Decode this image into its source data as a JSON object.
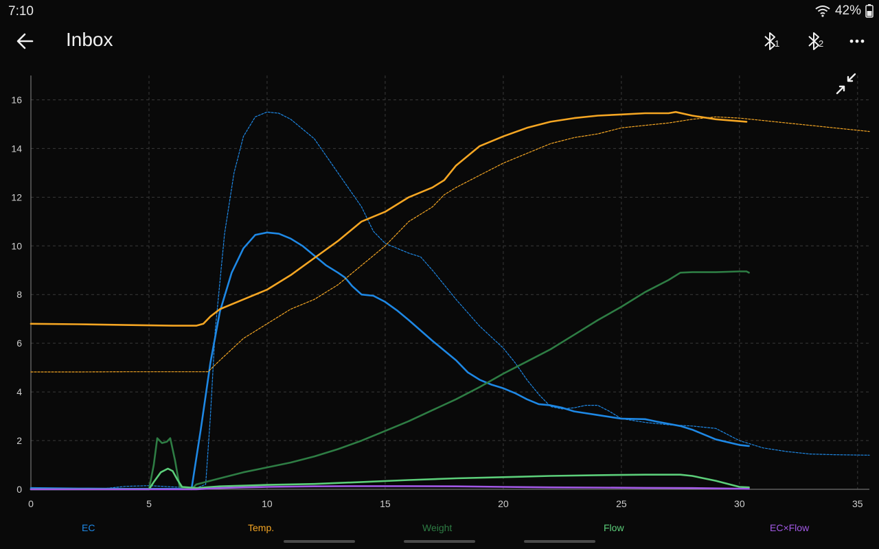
{
  "status": {
    "time": "7:10",
    "battery": "42%",
    "icons": [
      "wifi-icon",
      "battery-icon"
    ]
  },
  "app_bar": {
    "title": "Inbox",
    "back_icon": "arrow-left-icon",
    "bt1_label": "1",
    "bt2_label": "2",
    "more_icon": "more-horizontal-icon",
    "collapse_icon": "collapse-arrows-icon"
  },
  "colors": {
    "ec": "#1e88e5",
    "temp": "#f5a623",
    "weight": "#2e7d44",
    "flow": "#5ccf7a",
    "ecflow": "#a259e6"
  },
  "chart_data": {
    "type": "line",
    "xlim": [
      0,
      35.5
    ],
    "ylim": [
      0,
      17
    ],
    "x_ticks": [
      "0",
      "5",
      "10",
      "15",
      "20",
      "25",
      "30",
      "35"
    ],
    "y_ticks": [
      "0",
      "2",
      "4",
      "6",
      "8",
      "10",
      "12",
      "14",
      "16"
    ],
    "grid": true,
    "legend_position": "bottom",
    "series": [
      {
        "name": "EC",
        "style": "solid",
        "color": "#1e88e5",
        "points": [
          [
            0,
            0.05
          ],
          [
            2,
            0.03
          ],
          [
            4,
            0.02
          ],
          [
            6,
            0.02
          ],
          [
            6.8,
            0.01
          ],
          [
            7.2,
            2.5
          ],
          [
            7.6,
            5.2
          ],
          [
            8.0,
            7.3
          ],
          [
            8.5,
            8.9
          ],
          [
            9.0,
            9.9
          ],
          [
            9.5,
            10.45
          ],
          [
            10.0,
            10.55
          ],
          [
            10.5,
            10.5
          ],
          [
            11,
            10.3
          ],
          [
            11.5,
            10.0
          ],
          [
            12,
            9.6
          ],
          [
            12.5,
            9.2
          ],
          [
            13,
            8.9
          ],
          [
            13.3,
            8.7
          ],
          [
            13.6,
            8.35
          ],
          [
            14,
            8.0
          ],
          [
            14.5,
            7.95
          ],
          [
            15,
            7.7
          ],
          [
            15.5,
            7.35
          ],
          [
            16,
            6.95
          ],
          [
            17,
            6.1
          ],
          [
            18,
            5.3
          ],
          [
            18.5,
            4.8
          ],
          [
            19,
            4.5
          ],
          [
            19.5,
            4.3
          ],
          [
            20,
            4.15
          ],
          [
            20.5,
            3.95
          ],
          [
            21,
            3.7
          ],
          [
            21.5,
            3.5
          ],
          [
            22,
            3.45
          ],
          [
            22.5,
            3.35
          ],
          [
            23,
            3.2
          ],
          [
            24,
            3.05
          ],
          [
            25,
            2.9
          ],
          [
            26,
            2.88
          ],
          [
            26.5,
            2.78
          ],
          [
            27.5,
            2.6
          ],
          [
            28,
            2.45
          ],
          [
            29,
            2.05
          ],
          [
            30,
            1.82
          ],
          [
            30.4,
            1.78
          ]
        ]
      },
      {
        "name": "EC",
        "style": "dashed",
        "color": "#1e88e5",
        "points": [
          [
            0,
            0.04
          ],
          [
            3,
            0.02
          ],
          [
            4,
            0.12
          ],
          [
            5,
            0.15
          ],
          [
            6,
            0.1
          ],
          [
            7,
            0.05
          ],
          [
            7.4,
            0.2
          ],
          [
            7.6,
            3.0
          ],
          [
            7.8,
            6.5
          ],
          [
            8.2,
            10.5
          ],
          [
            8.6,
            13.0
          ],
          [
            9.0,
            14.5
          ],
          [
            9.5,
            15.3
          ],
          [
            10.0,
            15.5
          ],
          [
            10.5,
            15.45
          ],
          [
            11,
            15.2
          ],
          [
            12,
            14.4
          ],
          [
            13,
            13.0
          ],
          [
            14,
            11.6
          ],
          [
            14.5,
            10.6
          ],
          [
            15,
            10.1
          ],
          [
            15.5,
            9.9
          ],
          [
            16,
            9.7
          ],
          [
            16.5,
            9.55
          ],
          [
            17,
            9.0
          ],
          [
            18,
            7.8
          ],
          [
            19,
            6.7
          ],
          [
            20,
            5.8
          ],
          [
            20.5,
            5.2
          ],
          [
            21,
            4.5
          ],
          [
            21.5,
            3.9
          ],
          [
            22,
            3.4
          ],
          [
            22.5,
            3.3
          ],
          [
            23,
            3.35
          ],
          [
            23.5,
            3.45
          ],
          [
            24,
            3.45
          ],
          [
            24.5,
            3.2
          ],
          [
            25,
            2.9
          ],
          [
            26,
            2.75
          ],
          [
            27,
            2.65
          ],
          [
            28,
            2.6
          ],
          [
            29,
            2.5
          ],
          [
            30,
            2.0
          ],
          [
            31,
            1.7
          ],
          [
            32,
            1.55
          ],
          [
            33,
            1.45
          ],
          [
            34,
            1.42
          ],
          [
            35.5,
            1.4
          ]
        ]
      },
      {
        "name": "Temp.",
        "style": "solid",
        "color": "#f5a623",
        "points": [
          [
            0,
            6.8
          ],
          [
            2,
            6.78
          ],
          [
            4,
            6.75
          ],
          [
            6,
            6.72
          ],
          [
            7,
            6.72
          ],
          [
            7.3,
            6.8
          ],
          [
            7.6,
            7.1
          ],
          [
            8,
            7.4
          ],
          [
            9,
            7.8
          ],
          [
            10,
            8.2
          ],
          [
            11,
            8.8
          ],
          [
            12,
            9.5
          ],
          [
            13,
            10.2
          ],
          [
            14,
            11.0
          ],
          [
            15,
            11.4
          ],
          [
            16,
            12.0
          ],
          [
            17,
            12.4
          ],
          [
            17.5,
            12.7
          ],
          [
            18,
            13.3
          ],
          [
            19,
            14.1
          ],
          [
            20,
            14.5
          ],
          [
            21,
            14.85
          ],
          [
            22,
            15.1
          ],
          [
            23,
            15.25
          ],
          [
            24,
            15.35
          ],
          [
            25,
            15.4
          ],
          [
            26,
            15.45
          ],
          [
            27,
            15.45
          ],
          [
            27.3,
            15.5
          ],
          [
            28,
            15.35
          ],
          [
            29,
            15.2
          ],
          [
            30.3,
            15.1
          ]
        ]
      },
      {
        "name": "Temp.",
        "style": "dashed",
        "color": "#f5a623",
        "points": [
          [
            0,
            4.82
          ],
          [
            2,
            4.82
          ],
          [
            4,
            4.83
          ],
          [
            6,
            4.83
          ],
          [
            7.5,
            4.83
          ],
          [
            8,
            5.3
          ],
          [
            9,
            6.2
          ],
          [
            10,
            6.8
          ],
          [
            11,
            7.4
          ],
          [
            12,
            7.8
          ],
          [
            13,
            8.4
          ],
          [
            14,
            9.2
          ],
          [
            15,
            10.0
          ],
          [
            16,
            11.0
          ],
          [
            17,
            11.6
          ],
          [
            17.5,
            12.1
          ],
          [
            18,
            12.4
          ],
          [
            19,
            12.9
          ],
          [
            20,
            13.4
          ],
          [
            21,
            13.8
          ],
          [
            22,
            14.2
          ],
          [
            23,
            14.45
          ],
          [
            24,
            14.6
          ],
          [
            25,
            14.85
          ],
          [
            26,
            14.95
          ],
          [
            27,
            15.05
          ],
          [
            28,
            15.2
          ],
          [
            29,
            15.3
          ],
          [
            30,
            15.25
          ],
          [
            31,
            15.15
          ],
          [
            32,
            15.05
          ],
          [
            33,
            14.95
          ],
          [
            34,
            14.85
          ],
          [
            35.5,
            14.7
          ]
        ]
      },
      {
        "name": "Weight",
        "style": "solid",
        "color": "#2e7d44",
        "points": [
          [
            0,
            0.0
          ],
          [
            5,
            0.0
          ],
          [
            5.2,
            1.0
          ],
          [
            5.35,
            2.1
          ],
          [
            5.55,
            1.9
          ],
          [
            5.75,
            1.95
          ],
          [
            5.9,
            2.1
          ],
          [
            6.1,
            1.2
          ],
          [
            6.3,
            0.1
          ],
          [
            6.8,
            0.0
          ],
          [
            7,
            0.2
          ],
          [
            8,
            0.45
          ],
          [
            9,
            0.7
          ],
          [
            10,
            0.9
          ],
          [
            11,
            1.1
          ],
          [
            12,
            1.35
          ],
          [
            13,
            1.65
          ],
          [
            14,
            2.0
          ],
          [
            15,
            2.4
          ],
          [
            16,
            2.8
          ],
          [
            17,
            3.25
          ],
          [
            18,
            3.7
          ],
          [
            19,
            4.2
          ],
          [
            20,
            4.75
          ],
          [
            21,
            5.25
          ],
          [
            22,
            5.75
          ],
          [
            23,
            6.35
          ],
          [
            24,
            6.95
          ],
          [
            25,
            7.5
          ],
          [
            26,
            8.1
          ],
          [
            27,
            8.6
          ],
          [
            27.5,
            8.9
          ],
          [
            28,
            8.92
          ],
          [
            29,
            8.92
          ],
          [
            30,
            8.95
          ],
          [
            30.3,
            8.95
          ],
          [
            30.4,
            8.9
          ]
        ]
      },
      {
        "name": "Flow",
        "style": "solid",
        "color": "#5ccf7a",
        "points": [
          [
            0,
            0.0
          ],
          [
            5,
            0.0
          ],
          [
            5.2,
            0.3
          ],
          [
            5.5,
            0.7
          ],
          [
            5.8,
            0.85
          ],
          [
            6.0,
            0.75
          ],
          [
            6.2,
            0.4
          ],
          [
            6.4,
            0.1
          ],
          [
            7,
            0.05
          ],
          [
            8,
            0.12
          ],
          [
            9,
            0.15
          ],
          [
            10,
            0.18
          ],
          [
            12,
            0.22
          ],
          [
            14,
            0.3
          ],
          [
            16,
            0.38
          ],
          [
            18,
            0.45
          ],
          [
            20,
            0.5
          ],
          [
            22,
            0.55
          ],
          [
            24,
            0.58
          ],
          [
            26,
            0.6
          ],
          [
            27.5,
            0.6
          ],
          [
            28,
            0.55
          ],
          [
            29,
            0.35
          ],
          [
            30,
            0.1
          ],
          [
            30.4,
            0.08
          ]
        ]
      },
      {
        "name": "EC×Flow",
        "style": "solid",
        "color": "#a259e6",
        "points": [
          [
            0,
            0.0
          ],
          [
            7,
            0.0
          ],
          [
            8,
            0.05
          ],
          [
            9,
            0.08
          ],
          [
            10,
            0.1
          ],
          [
            12,
            0.12
          ],
          [
            14,
            0.13
          ],
          [
            16,
            0.13
          ],
          [
            18,
            0.12
          ],
          [
            20,
            0.1
          ],
          [
            22,
            0.08
          ],
          [
            24,
            0.07
          ],
          [
            26,
            0.06
          ],
          [
            28,
            0.05
          ],
          [
            30.4,
            0.02
          ]
        ]
      }
    ],
    "legend": [
      {
        "label": "EC",
        "color": "#1e88e5"
      },
      {
        "label": "Temp.",
        "color": "#f5a623"
      },
      {
        "label": "Weight",
        "color": "#2e7d44"
      },
      {
        "label": "Flow",
        "color": "#5ccf7a"
      },
      {
        "label": "EC×Flow",
        "color": "#a259e6"
      }
    ]
  }
}
